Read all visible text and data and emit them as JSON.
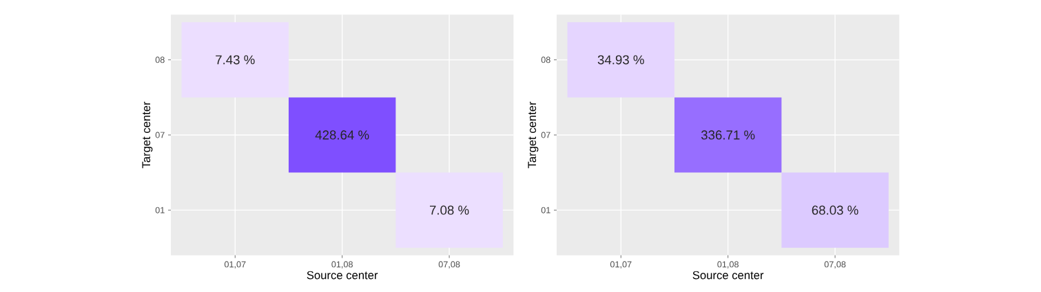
{
  "chart_data": [
    {
      "type": "heatmap",
      "xlabel": "Source center",
      "ylabel": "Target center",
      "categories": [
        "01,07",
        "01,08",
        "07,08"
      ],
      "y_categories": [
        "08",
        "07",
        "01"
      ],
      "cells": [
        [
          7.43,
          null,
          null
        ],
        [
          null,
          428.64,
          null
        ],
        [
          null,
          null,
          7.08
        ]
      ],
      "cell_labels": [
        [
          "7.43 %",
          null,
          null
        ],
        [
          null,
          "428.64 %",
          null
        ],
        [
          null,
          null,
          "7.08 %"
        ]
      ],
      "grid": true
    },
    {
      "type": "heatmap",
      "xlabel": "Source center",
      "ylabel": "Target center",
      "categories": [
        "01,07",
        "01,08",
        "07,08"
      ],
      "y_categories": [
        "08",
        "07",
        "01"
      ],
      "cells": [
        [
          34.93,
          null,
          null
        ],
        [
          null,
          336.71,
          null
        ],
        [
          null,
          null,
          68.03
        ]
      ],
      "cell_labels": [
        [
          "34.93 %",
          null,
          null
        ],
        [
          null,
          "336.71 %",
          null
        ],
        [
          null,
          null,
          "68.03 %"
        ]
      ],
      "grid": true
    }
  ]
}
